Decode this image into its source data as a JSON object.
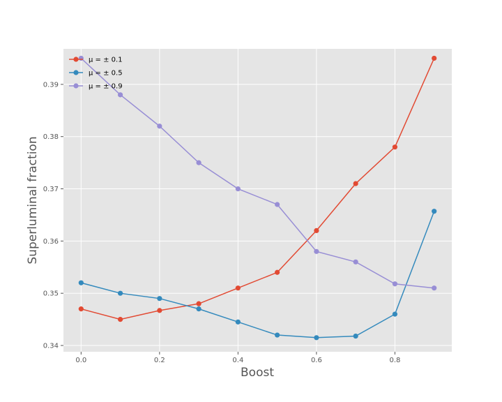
{
  "chart_data": {
    "type": "line",
    "title": "",
    "xlabel": "Boost",
    "ylabel": "Superluminal fraction",
    "xlim": [
      -0.045,
      0.945
    ],
    "ylim": [
      0.3388,
      0.3968
    ],
    "x_ticks": [
      0.0,
      0.2,
      0.4,
      0.6,
      0.8
    ],
    "x_tick_labels": [
      "0.0",
      "0.2",
      "0.4",
      "0.6",
      "0.8"
    ],
    "y_ticks": [
      0.34,
      0.35,
      0.36,
      0.37,
      0.38,
      0.39
    ],
    "y_tick_labels": [
      "0.34",
      "0.35",
      "0.36",
      "0.37",
      "0.38",
      "0.39"
    ],
    "grid": true,
    "legend_position": "top-left",
    "x": [
      0.0,
      0.1,
      0.2,
      0.3,
      0.4,
      0.5,
      0.6,
      0.7,
      0.8,
      0.9
    ],
    "series": [
      {
        "name": "μ = ± 0.1",
        "color": "#E24A33",
        "values": [
          0.347,
          0.345,
          0.3467,
          0.348,
          0.351,
          0.354,
          0.362,
          0.371,
          0.378,
          0.395
        ]
      },
      {
        "name": "μ = ± 0.5",
        "color": "#348ABD",
        "values": [
          0.352,
          0.35,
          0.349,
          0.347,
          0.3445,
          0.342,
          0.3415,
          0.3418,
          0.346,
          0.3657
        ]
      },
      {
        "name": "μ = ± 0.9",
        "color": "#988ED5",
        "values": [
          0.395,
          0.388,
          0.382,
          0.375,
          0.37,
          0.367,
          0.358,
          0.356,
          0.3518,
          0.351
        ]
      }
    ]
  }
}
